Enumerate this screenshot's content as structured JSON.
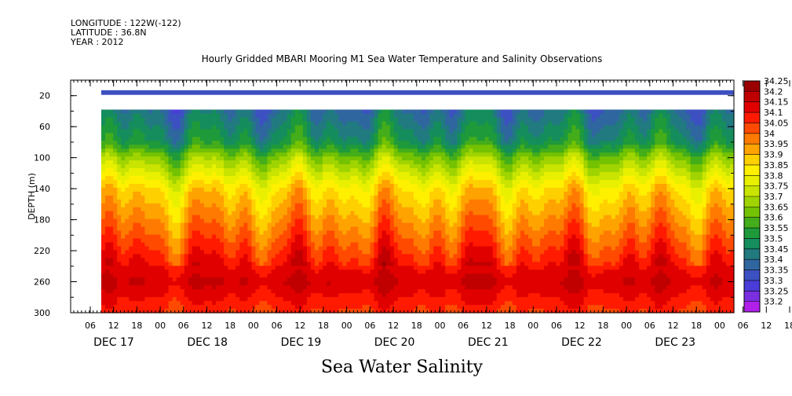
{
  "meta": {
    "longitude": "LONGITUDE : 122W(-122)",
    "latitude": "LATITUDE : 36.8N",
    "year": "YEAR : 2012"
  },
  "chart_data": {
    "type": "heatmap",
    "title": "Hourly Gridded MBARI Mooring M1 Sea Water Temperature and Salinity Observations",
    "xlabel": "Sea Water Salinity",
    "ylabel": "DEPTH (m)",
    "y_ticks": [
      "20",
      "60",
      "100",
      "140",
      "180",
      "220",
      "260",
      "300"
    ],
    "ylim": [
      0,
      300
    ],
    "y_reversed": true,
    "x_hour_ticks": [
      "06",
      "12",
      "18",
      "00",
      "06",
      "12",
      "18",
      "00",
      "06",
      "12",
      "18",
      "00",
      "06",
      "12",
      "18",
      "00",
      "06",
      "12",
      "18",
      "00",
      "06",
      "12",
      "18",
      "00",
      "06",
      "12",
      "18",
      "00",
      "06",
      "12",
      "18",
      "00"
    ],
    "x_day_labels": [
      "DEC 17",
      "DEC 18",
      "DEC 19",
      "DEC 20",
      "DEC 21",
      "DEC 22",
      "DEC 23"
    ],
    "colorbar": {
      "levels": [
        "34.25",
        "34.2",
        "34.15",
        "34.1",
        "34.05",
        "34",
        "33.95",
        "33.9",
        "33.85",
        "33.8",
        "33.75",
        "33.7",
        "33.65",
        "33.6",
        "33.55",
        "33.5",
        "33.45",
        "33.4",
        "33.35",
        "33.3",
        "33.25",
        "33.2"
      ],
      "colors": [
        "#9b0000",
        "#c00000",
        "#e00000",
        "#ff1a00",
        "#ff4a00",
        "#ff7a00",
        "#ffa300",
        "#ffd000",
        "#fff000",
        "#e8f000",
        "#c8e400",
        "#a0d400",
        "#74c200",
        "#44ad1a",
        "#1e9a3a",
        "#158d5c",
        "#217a80",
        "#2f66a0",
        "#3c50c2",
        "#4a3cd8",
        "#7a2ee0",
        "#b020e8"
      ]
    },
    "surface_band": {
      "depth": 16,
      "value": 33.35
    },
    "gap_range": [
      20,
      38
    ],
    "salinity_profile_by_depth": [
      {
        "depth": 40,
        "value": 33.45
      },
      {
        "depth": 60,
        "value": 33.5
      },
      {
        "depth": 80,
        "value": 33.55
      },
      {
        "depth": 100,
        "value": 33.7
      },
      {
        "depth": 120,
        "value": 33.8
      },
      {
        "depth": 140,
        "value": 33.9
      },
      {
        "depth": 160,
        "value": 33.95
      },
      {
        "depth": 180,
        "value": 34.0
      },
      {
        "depth": 200,
        "value": 34.05
      },
      {
        "depth": 220,
        "value": 34.1
      },
      {
        "depth": 240,
        "value": 34.15
      },
      {
        "depth": 260,
        "value": 34.2
      },
      {
        "depth": 280,
        "value": 34.15
      },
      {
        "depth": 300,
        "value": 34.1
      }
    ],
    "grid": false,
    "legend": "right"
  }
}
